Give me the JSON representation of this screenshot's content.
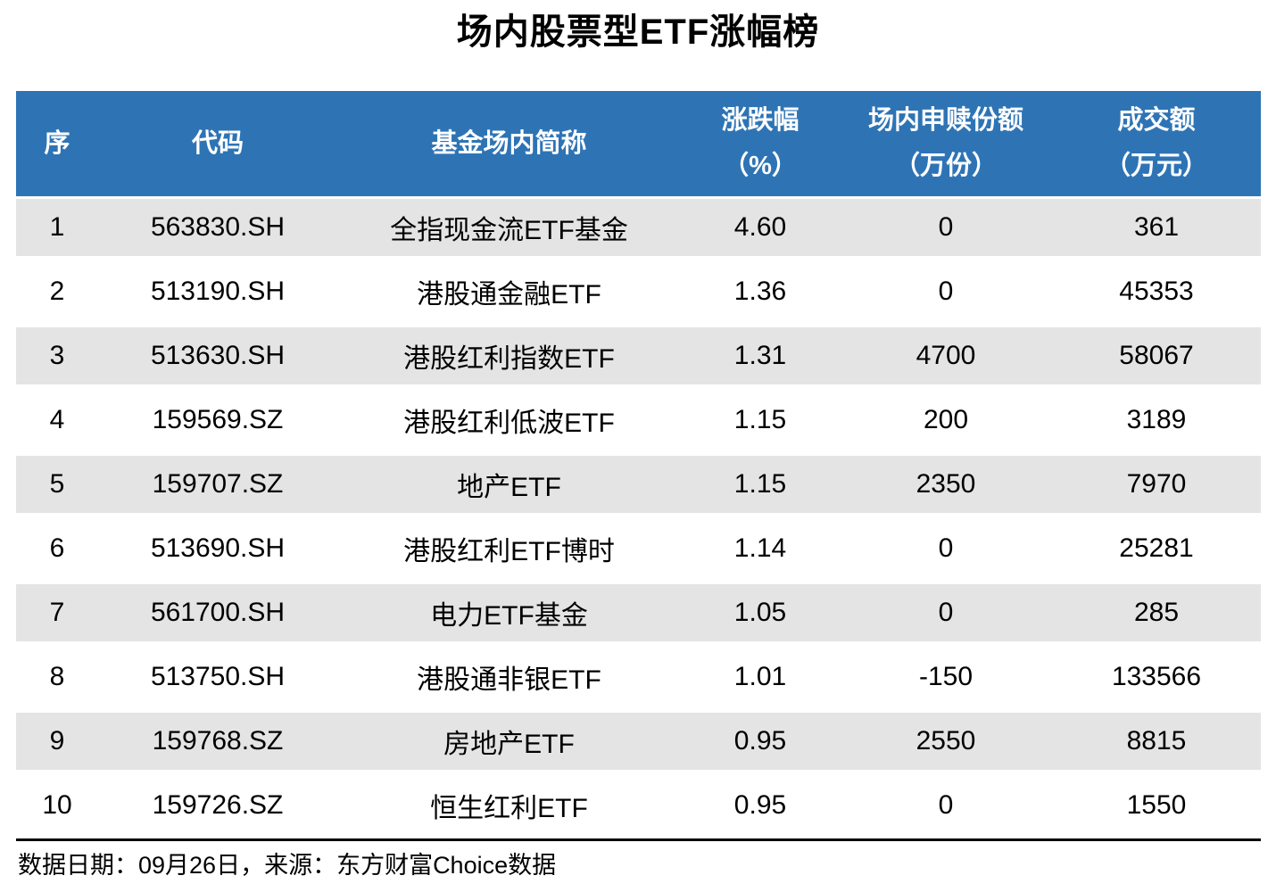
{
  "title": "场内股票型ETF涨幅榜",
  "colors": {
    "header_bg": "#2E74B5",
    "stripe_bg": "#E4E4E4",
    "header_text": "#FFFFFF",
    "body_text": "#000000"
  },
  "chart_data": {
    "type": "table",
    "title": "场内股票型ETF涨幅榜",
    "columns": [
      {
        "key": "seq",
        "label": "序",
        "sublabel": ""
      },
      {
        "key": "code",
        "label": "代码",
        "sublabel": ""
      },
      {
        "key": "name",
        "label": "基金场内简称",
        "sublabel": ""
      },
      {
        "key": "change",
        "label": "涨跌幅",
        "sublabel": "（%）"
      },
      {
        "key": "shares",
        "label": "场内申赎份额",
        "sublabel": "（万份）"
      },
      {
        "key": "turnover",
        "label": "成交额",
        "sublabel": "（万元）"
      }
    ],
    "rows": [
      [
        "1",
        "563830.SH",
        "全指现金流ETF基金",
        "4.60",
        "0",
        "361"
      ],
      [
        "2",
        "513190.SH",
        "港股通金融ETF",
        "1.36",
        "0",
        "45353"
      ],
      [
        "3",
        "513630.SH",
        "港股红利指数ETF",
        "1.31",
        "4700",
        "58067"
      ],
      [
        "4",
        "159569.SZ",
        "港股红利低波ETF",
        "1.15",
        "200",
        "3189"
      ],
      [
        "5",
        "159707.SZ",
        "地产ETF",
        "1.15",
        "2350",
        "7970"
      ],
      [
        "6",
        "513690.SH",
        "港股红利ETF博时",
        "1.14",
        "0",
        "25281"
      ],
      [
        "7",
        "561700.SH",
        "电力ETF基金",
        "1.05",
        "0",
        "285"
      ],
      [
        "8",
        "513750.SH",
        "港股通非银ETF",
        "1.01",
        "-150",
        "133566"
      ],
      [
        "9",
        "159768.SZ",
        "房地产ETF",
        "0.95",
        "2550",
        "8815"
      ],
      [
        "10",
        "159726.SZ",
        "恒生红利ETF",
        "0.95",
        "0",
        "1550"
      ]
    ],
    "source_note": "数据日期：09月26日，来源：东方财富Choice数据"
  },
  "footer": {
    "note": "数据日期：09月26日，来源：东方财富Choice数据"
  }
}
